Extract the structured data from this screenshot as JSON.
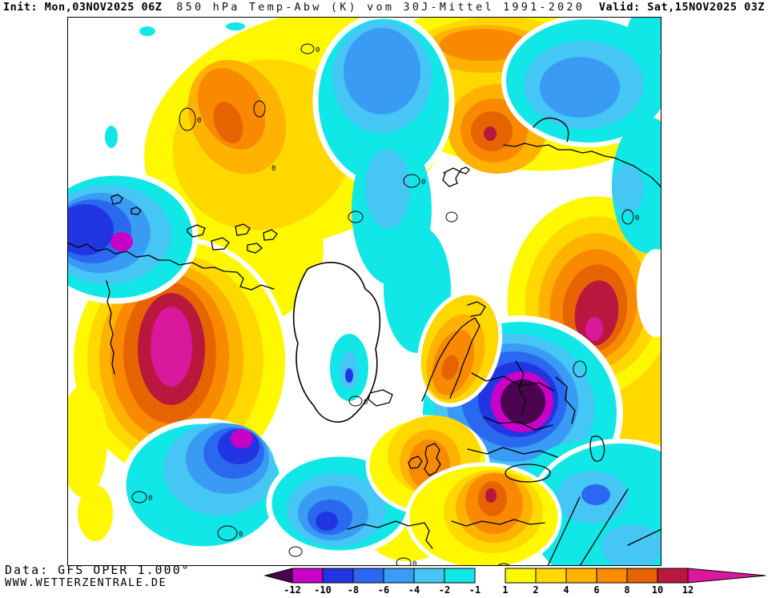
{
  "header": {
    "init": "Init: Mon,03NOV2025 06Z",
    "title": "850 hPa Temp-Abw (K) vom 30J-Mittel 1991-2020",
    "valid": "Valid: Sat,15NOV2025 03Z"
  },
  "footer": {
    "data_source": "Data: GFS OPER 1.000°",
    "website": "WWW.WETTERZENTRALE.DE"
  },
  "map_labels": {
    "zero_contour": "0"
  },
  "legend": {
    "unit": "K",
    "below_color": "#4A034E",
    "above_color": "#D9189B",
    "neg_colors": [
      "#C800C8",
      "#2136E2",
      "#2A68F0",
      "#3A9BF4",
      "#45C6F4",
      "#12E7E7"
    ],
    "pos_colors": [
      "#FFF800",
      "#FFD800",
      "#FFB200",
      "#F88900",
      "#E66400",
      "#B8173E"
    ],
    "neg_ticks": [
      "-12",
      "-10",
      "-8",
      "-6",
      "-4",
      "-2",
      "-1"
    ],
    "pos_ticks": [
      "1",
      "2",
      "4",
      "6",
      "8",
      "10",
      "12"
    ]
  },
  "chart_data": {
    "type": "heatmap",
    "title": "850 hPa Temp-Abw (K) vom 30J-Mittel 1991-2020",
    "model": "GFS OPER 1.000°",
    "init_time": "Mon,03NOV2025 06Z",
    "valid_time": "Sat,15NOV2025 03Z",
    "unit": "K",
    "projection": "northern-hemisphere polar stereographic",
    "legend_scale": [
      -12,
      -10,
      -8,
      -6,
      -4,
      -2,
      -1,
      1,
      2,
      4,
      6,
      8,
      10,
      12
    ],
    "anomaly_centers": [
      {
        "region": "northwest North America (left mid)",
        "sign": "warm",
        "peak_K": "+10 to >+12"
      },
      {
        "region": "Canadian Arctic / left edge",
        "sign": "cold",
        "peak_K": "-10 to -12"
      },
      {
        "region": "Labrador Sea (bottom left)",
        "sign": "cold",
        "peak_K": "-10 to -12"
      },
      {
        "region": "eastern Europe / Balkans",
        "sign": "cold",
        "peak_K": "below -12"
      },
      {
        "region": "Urals / western Siberia (right mid)",
        "sign": "warm",
        "peak_K": "+10 to >+12"
      },
      {
        "region": "central Siberia (top centre-right)",
        "sign": "warm",
        "peak_K": "+8 to +10"
      },
      {
        "region": "Kara Sea (top right)",
        "sign": "cold",
        "peak_K": "-6 to -8"
      },
      {
        "region": "Arctic Ocean near pole (top centre)",
        "sign": "cold",
        "peak_K": "-6 to -8"
      },
      {
        "region": "Scandinavia",
        "sign": "warm",
        "peak_K": "+6 to +8"
      },
      {
        "region": "Turkey / eastern Mediterranean",
        "sign": "warm",
        "peak_K": "+8 to +10"
      },
      {
        "region": "central Mediterranean (bottom centre)",
        "sign": "cold",
        "peak_K": "-8 to -10"
      },
      {
        "region": "central Asia (bottom right)",
        "sign": "cold",
        "peak_K": "-2 to -4"
      }
    ]
  }
}
